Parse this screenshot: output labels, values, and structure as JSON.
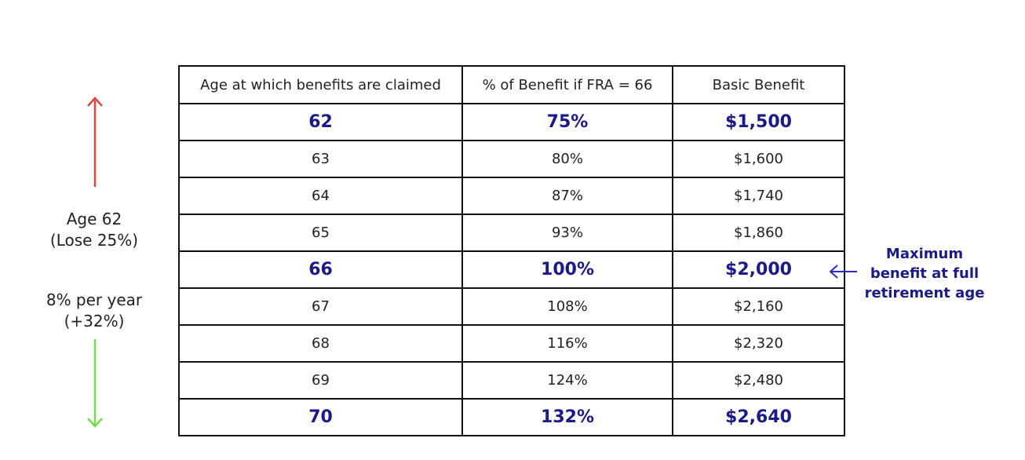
{
  "table": {
    "headers": [
      "Age at which benefits are claimed",
      "% of Benefit if FRA = 66",
      "Basic Benefit"
    ],
    "rows": [
      {
        "age": "62",
        "percent": "75%",
        "benefit": "$1,500",
        "highlight": true
      },
      {
        "age": "63",
        "percent": "80%",
        "benefit": "$1,600",
        "highlight": false
      },
      {
        "age": "64",
        "percent": "87%",
        "benefit": "$1,740",
        "highlight": false
      },
      {
        "age": "65",
        "percent": "93%",
        "benefit": "$1,860",
        "highlight": false
      },
      {
        "age": "66",
        "percent": "100%",
        "benefit": "$2,000",
        "highlight": true
      },
      {
        "age": "67",
        "percent": "108%",
        "benefit": "$2,160",
        "highlight": false
      },
      {
        "age": "68",
        "percent": "116%",
        "benefit": "$2,320",
        "highlight": false
      },
      {
        "age": "69",
        "percent": "124%",
        "benefit": "$2,480",
        "highlight": false
      },
      {
        "age": "70",
        "percent": "132%",
        "benefit": "$2,640",
        "highlight": true
      }
    ]
  },
  "side": {
    "lose_line1": "Age 62",
    "lose_line2": "(Lose 25%)",
    "gain_line1": "8% per year",
    "gain_line2": "(+32%)"
  },
  "note": {
    "line1": "Maximum",
    "line2": "benefit at full",
    "line3": "retirement age"
  },
  "colors": {
    "highlight_text": "#1a1a8c",
    "arrow_up": "#e0463a",
    "arrow_down": "#6fe04a",
    "arrow_left": "#2a2ad0"
  },
  "icons": {
    "up": "arrow-up-icon",
    "down": "arrow-down-icon",
    "left": "arrow-left-icon"
  }
}
